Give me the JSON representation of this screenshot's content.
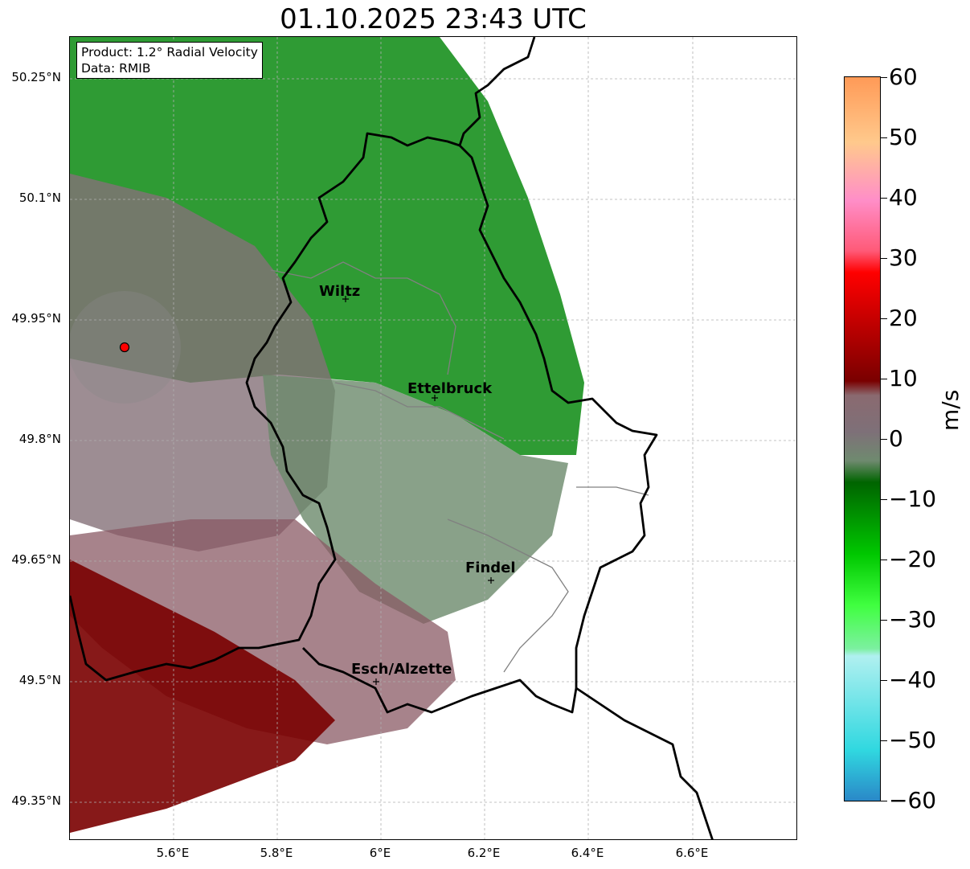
{
  "title": "01.10.2025 23:43 UTC",
  "product_box": {
    "line1": "Product: 1.2° Radial Velocity",
    "line2": "Data: RMIB"
  },
  "axes": {
    "latitude_labels": [
      "50.25°N",
      "50.1°N",
      "49.95°N",
      "49.8°N",
      "49.65°N",
      "49.5°N",
      "49.35°N"
    ],
    "longitude_labels": [
      "5.6°E",
      "5.8°E",
      "6°E",
      "6.2°E",
      "6.4°E",
      "6.6°E"
    ]
  },
  "cities": [
    {
      "name": "Wiltz",
      "lon": 5.93,
      "lat": 49.97
    },
    {
      "name": "Ettelbruck",
      "lon": 6.1,
      "lat": 49.85
    },
    {
      "name": "Findel",
      "lon": 6.21,
      "lat": 49.63
    },
    {
      "name": "Esch/Alzette",
      "lon": 5.98,
      "lat": 49.5
    }
  ],
  "radar_site": {
    "lon": 5.505,
    "lat": 49.915
  },
  "colorbar": {
    "unit": "m/s",
    "ticks": [
      "60",
      "50",
      "40",
      "30",
      "20",
      "10",
      "0",
      "−10",
      "−20",
      "−30",
      "−40",
      "−50",
      "−60"
    ],
    "range": [
      -60,
      60
    ],
    "colors": {
      "orange": "#ff9a57",
      "peach": "#ffc98c",
      "pink": "#ff8ec8",
      "red": "#ff0000",
      "dark_red": "#7a0000",
      "mauve": "#8a6a70",
      "gray_green": "#6f8a6f",
      "dark_green": "#006400",
      "green": "#00c800",
      "light_green": "#7cf0a0",
      "cyan": "#30d8e0",
      "blue": "#2a88c8"
    }
  }
}
